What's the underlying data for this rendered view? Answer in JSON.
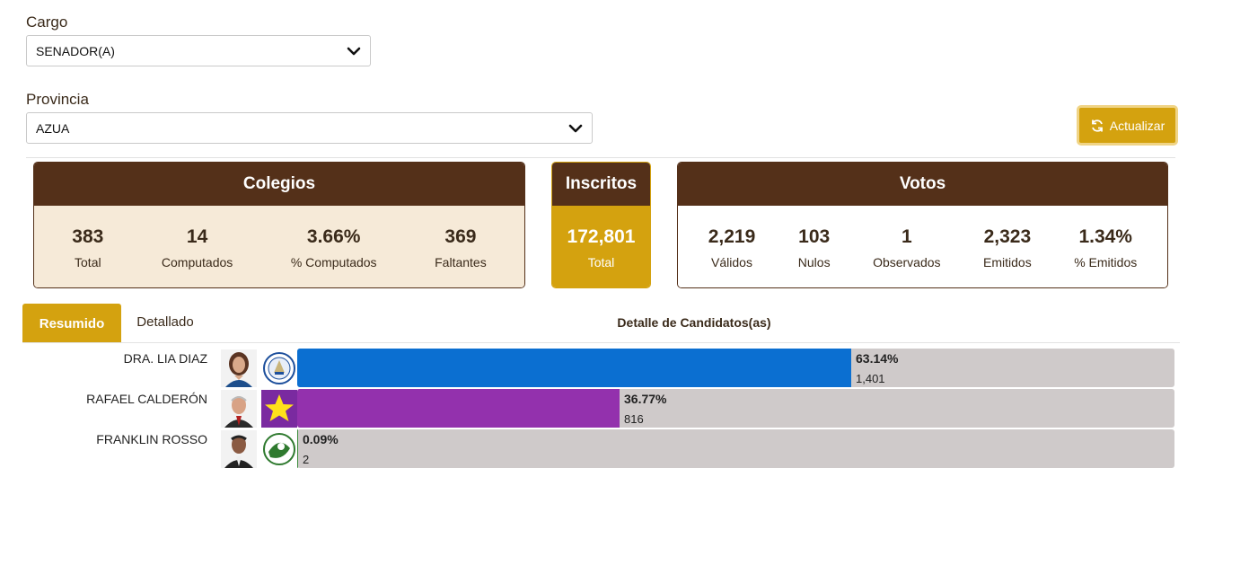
{
  "filters": {
    "cargo_label": "Cargo",
    "cargo_value": "SENADOR(A)",
    "provincia_label": "Provincia",
    "provincia_value": "AZUA"
  },
  "refresh_button": {
    "label": "Actualizar",
    "icon": "refresh-icon"
  },
  "colegios": {
    "title": "Colegios",
    "stats": [
      {
        "value": "383",
        "label": "Total"
      },
      {
        "value": "14",
        "label": "Computados"
      },
      {
        "value": "3.66%",
        "label": "% Computados"
      },
      {
        "value": "369",
        "label": "Faltantes"
      }
    ]
  },
  "inscritos": {
    "title": "Inscritos",
    "value": "172,801",
    "label": "Total"
  },
  "votos": {
    "title": "Votos",
    "stats": [
      {
        "value": "2,219",
        "label": "Válidos"
      },
      {
        "value": "103",
        "label": "Nulos"
      },
      {
        "value": "1",
        "label": "Observados"
      },
      {
        "value": "2,323",
        "label": "Emitidos"
      },
      {
        "value": "1.34%",
        "label": "% Emitidos"
      }
    ]
  },
  "tabs": {
    "resumido": "Resumido",
    "detallado": "Detallado"
  },
  "section_title": "Detalle de Candidatos(as)",
  "candidates": [
    {
      "name": "DRA. LIA DIAZ",
      "percent_label": "63.14%",
      "percent": 63.14,
      "votes": "1,401",
      "color": "#0b6fd1"
    },
    {
      "name": "RAFAEL CALDERÓN",
      "percent_label": "36.77%",
      "percent": 36.77,
      "votes": "816",
      "color": "#9331ad"
    },
    {
      "name": "FRANKLIN ROSSO",
      "percent_label": "0.09%",
      "percent": 0.09,
      "votes": "2",
      "color": "#3a8b3a"
    }
  ],
  "colors": {
    "brown": "#543019",
    "gold": "#d4a20f",
    "cream": "#f6ead8",
    "track": "#cfcaca"
  }
}
